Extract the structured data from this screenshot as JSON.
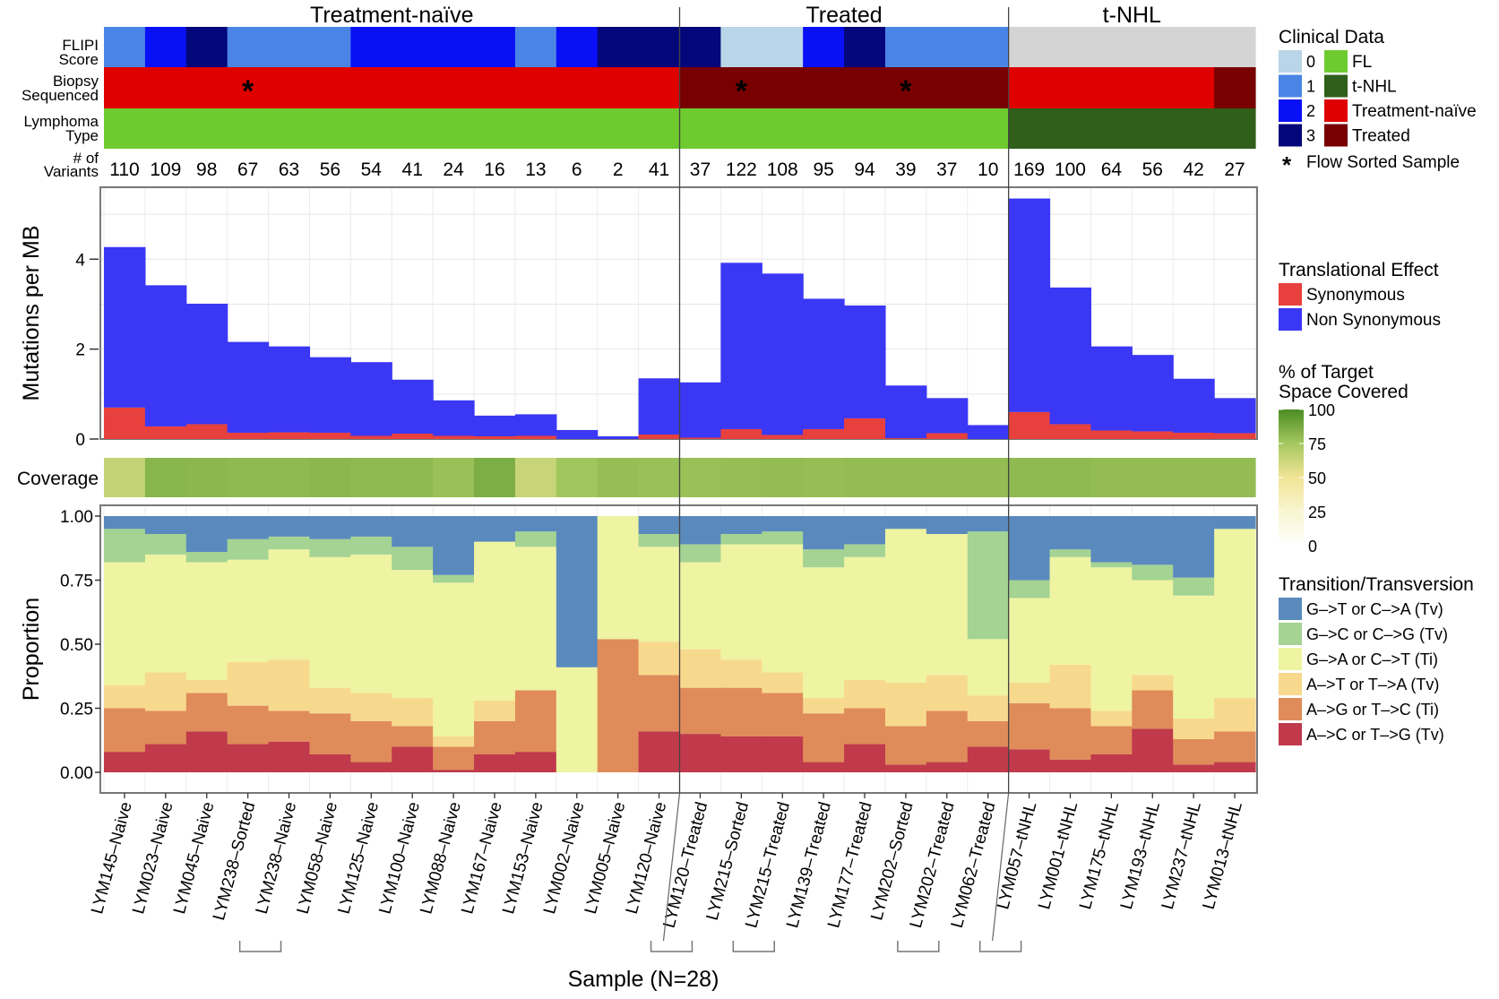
{
  "figure": {
    "x_title": "Sample (N=28)",
    "groups": [
      {
        "label": "Treatment-naïve",
        "start": 0,
        "end": 14
      },
      {
        "label": "Treated",
        "start": 14,
        "end": 22
      },
      {
        "label": "t-NHL",
        "start": 22,
        "end": 28
      }
    ],
    "samples": [
      "LYM145–Naive",
      "LYM023–Naive",
      "LYM045–Naive",
      "LYM238–Sorted",
      "LYM238–Naive",
      "LYM058–Naive",
      "LYM125–Naive",
      "LYM100–Naive",
      "LYM088–Naive",
      "LYM167–Naive",
      "LYM153–Naive",
      "LYM002–Naive",
      "LYM005–Naive",
      "LYM120–Naive",
      "LYM120–Treated",
      "LYM215–Sorted",
      "LYM215–Treated",
      "LYM139–Treated",
      "LYM177–Treated",
      "LYM202–Sorted",
      "LYM202–Treated",
      "LYM062–Treated",
      "LYM057–tNHL",
      "LYM001–tNHL",
      "LYM175–tNHL",
      "LYM193–tNHL",
      "LYM237–tNHL",
      "LYM013–tNHL"
    ],
    "paired_samples": [
      [
        3,
        4
      ],
      [
        13,
        14
      ],
      [
        15,
        16
      ],
      [
        19,
        20
      ],
      [
        21,
        22
      ]
    ]
  },
  "chart_data": [
    {
      "type": "heatmap",
      "panel": "clinical",
      "row_labels": [
        [
          "FLIPI",
          "Score"
        ],
        [
          "Biopsy",
          "Sequenced"
        ],
        [
          "Lymphoma",
          "Type"
        ]
      ],
      "flipi_score": [
        1,
        2,
        3,
        1,
        1,
        1,
        2,
        2,
        2,
        2,
        1,
        2,
        3,
        3,
        3,
        0,
        0,
        2,
        3,
        1,
        1,
        1,
        null,
        null,
        null,
        null,
        null,
        null
      ],
      "biopsy_sequenced": [
        "Treatment-naïve",
        "Treatment-naïve",
        "Treatment-naïve",
        "Treatment-naïve",
        "Treatment-naïve",
        "Treatment-naïve",
        "Treatment-naïve",
        "Treatment-naïve",
        "Treatment-naïve",
        "Treatment-naïve",
        "Treatment-naïve",
        "Treatment-naïve",
        "Treatment-naïve",
        "Treatment-naïve",
        "Treated",
        "Treated",
        "Treated",
        "Treated",
        "Treated",
        "Treated",
        "Treated",
        "Treated",
        "Treatment-naïve",
        "Treatment-naïve",
        "Treatment-naïve",
        "Treatment-naïve",
        "Treatment-naïve",
        "Treated"
      ],
      "lymphoma_type": [
        "FL",
        "FL",
        "FL",
        "FL",
        "FL",
        "FL",
        "FL",
        "FL",
        "FL",
        "FL",
        "FL",
        "FL",
        "FL",
        "FL",
        "FL",
        "FL",
        "FL",
        "FL",
        "FL",
        "FL",
        "FL",
        "FL",
        "t-NHL",
        "t-NHL",
        "t-NHL",
        "t-NHL",
        "t-NHL",
        "t-NHL"
      ],
      "flow_sorted": [
        3,
        15,
        19
      ],
      "flow_sorted_mark": "*",
      "variants_label": [
        "# of",
        "Variants"
      ],
      "variants": [
        110,
        109,
        98,
        67,
        63,
        56,
        54,
        41,
        24,
        16,
        13,
        6,
        2,
        41,
        37,
        122,
        108,
        95,
        94,
        39,
        37,
        10,
        169,
        100,
        64,
        56,
        42,
        27
      ],
      "legend": {
        "title": "Clinical Data",
        "flipi": [
          {
            "label": "0",
            "color": "#b9d5e8"
          },
          {
            "label": "1",
            "color": "#4a85e6"
          },
          {
            "label": "2",
            "color": "#0a10f5"
          },
          {
            "label": "3",
            "color": "#03077a"
          }
        ],
        "flipi_missing_color": "#d4d4d4",
        "categories": [
          {
            "label": "FL",
            "color": "#6ecb2f"
          },
          {
            "label": "t-NHL",
            "color": "#305f1b"
          },
          {
            "label": "Treatment-naïve",
            "color": "#df0000"
          },
          {
            "label": "Treated",
            "color": "#780000"
          }
        ],
        "flow_sorted_label": "Flow Sorted Sample"
      }
    },
    {
      "type": "bar",
      "panel": "mutations",
      "ylabel": "Mutations per MB",
      "ylim": [
        0,
        5.6
      ],
      "yticks": [
        0,
        2,
        4
      ],
      "grid": true,
      "series": [
        {
          "name": "Synonymous",
          "color": "#e8403d",
          "values": [
            0.7,
            0.28,
            0.33,
            0.14,
            0.15,
            0.14,
            0.07,
            0.12,
            0.07,
            0.06,
            0.07,
            0,
            0,
            0.1,
            0.03,
            0.22,
            0.09,
            0.22,
            0.46,
            0.02,
            0.13,
            0
          ]
        },
        {
          "name": "Non Synonymous",
          "color": "#3a37f5",
          "values": [
            3.57,
            3.14,
            2.68,
            2.02,
            1.91,
            1.68,
            1.64,
            1.2,
            0.79,
            0.46,
            0.48,
            0.2,
            0.06,
            1.25,
            1.23,
            3.7,
            3.59,
            2.9,
            2.51,
            1.17,
            0.78,
            0.31
          ]
        }
      ],
      "tnhl_synonymous": [
        0.6,
        0.33,
        0.19,
        0.17,
        0.14,
        0.13
      ],
      "tnhl_nonsynonymous": [
        4.75,
        3.04,
        1.87,
        1.7,
        1.2,
        0.78
      ],
      "legend_title": "Translational Effect"
    },
    {
      "type": "heatmap",
      "panel": "coverage",
      "row_label": "Coverage",
      "legend_title": [
        "% of Target",
        "Space Covered"
      ],
      "scale_ticks": [
        100,
        75,
        50,
        25,
        0
      ],
      "values": [
        65,
        83,
        82,
        81,
        81,
        82,
        81,
        81,
        78,
        86,
        64,
        76,
        79,
        78,
        78,
        79,
        80,
        79,
        80,
        80,
        80,
        80,
        81,
        81,
        80,
        80,
        80,
        80
      ]
    },
    {
      "type": "bar",
      "panel": "transitions",
      "ylabel": "Proportion",
      "ylim": [
        0,
        1
      ],
      "yticks": [
        "0.00",
        "0.25",
        "0.50",
        "0.75",
        "1.00"
      ],
      "grid": true,
      "legend_title": "Transition/Transversion",
      "series": [
        {
          "name": "A–>C or T–>G (Tv)",
          "color": "#c03a4b",
          "values": [
            0.08,
            0.11,
            0.16,
            0.11,
            0.12,
            0.07,
            0.04,
            0.1,
            0.01,
            0.07,
            0.08,
            0,
            0,
            0.16,
            0.15,
            0.14,
            0.14,
            0.04,
            0.11,
            0.03,
            0.04,
            0.1,
            0.09,
            0.05,
            0.07,
            0.17,
            0.03,
            0.04
          ]
        },
        {
          "name": "A–>G or T–>C (Ti)",
          "color": "#e08c5a",
          "values": [
            0.17,
            0.13,
            0.15,
            0.15,
            0.12,
            0.16,
            0.16,
            0.08,
            0.09,
            0.13,
            0.24,
            0,
            0.52,
            0.22,
            0.18,
            0.19,
            0.17,
            0.19,
            0.14,
            0.15,
            0.2,
            0.1,
            0.18,
            0.2,
            0.11,
            0.15,
            0.1,
            0.12
          ]
        },
        {
          "name": "A–>T or T–>A (Tv)",
          "color": "#f7d98e",
          "values": [
            0.09,
            0.15,
            0.05,
            0.17,
            0.2,
            0.1,
            0.11,
            0.11,
            0.04,
            0.08,
            0,
            0,
            0,
            0.13,
            0.15,
            0.11,
            0.08,
            0.06,
            0.11,
            0.17,
            0.14,
            0.1,
            0.08,
            0.17,
            0.06,
            0.06,
            0.08,
            0.13
          ]
        },
        {
          "name": "G–>A or C–>T (Ti)",
          "color": "#eef4a1",
          "values": [
            0.48,
            0.46,
            0.46,
            0.4,
            0.43,
            0.51,
            0.54,
            0.5,
            0.6,
            0.62,
            0.56,
            0.41,
            0.48,
            0.37,
            0.34,
            0.45,
            0.5,
            0.51,
            0.48,
            0.6,
            0.55,
            0.22,
            0.33,
            0.42,
            0.56,
            0.37,
            0.48,
            0.66
          ]
        },
        {
          "name": "G–>C or C–>G (Tv)",
          "color": "#a4d393",
          "values": [
            0.13,
            0.08,
            0.04,
            0.08,
            0.05,
            0.07,
            0.07,
            0.09,
            0.03,
            0,
            0.06,
            0,
            0,
            0.05,
            0.07,
            0.04,
            0.05,
            0.07,
            0.05,
            0,
            0,
            0.42,
            0.07,
            0.03,
            0.02,
            0.06,
            0.07,
            0
          ]
        },
        {
          "name": "G–>T or C–>A (Tv)",
          "color": "#5a8abd",
          "values": [
            0.05,
            0.07,
            0.14,
            0.09,
            0.08,
            0.09,
            0.08,
            0.12,
            0.23,
            0.1,
            0.06,
            0.59,
            0,
            0.07,
            0.11,
            0.07,
            0.06,
            0.13,
            0.11,
            0.05,
            0.07,
            0.06,
            0.25,
            0.13,
            0.18,
            0.19,
            0.24,
            0.05
          ]
        }
      ]
    }
  ]
}
